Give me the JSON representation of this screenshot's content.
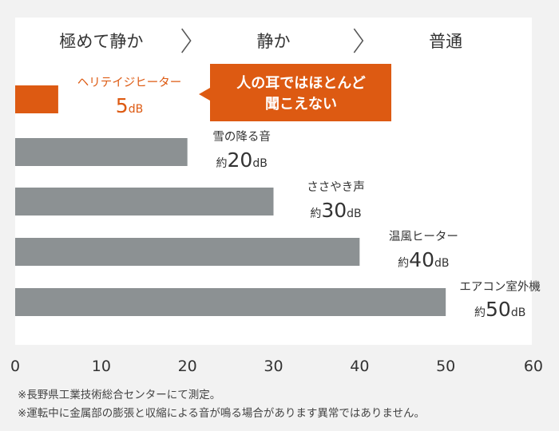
{
  "chart_data": {
    "type": "bar",
    "orientation": "horizontal",
    "xlim": [
      0,
      60
    ],
    "x_ticks": [
      0,
      10,
      20,
      30,
      40,
      50,
      60
    ],
    "grid": false,
    "zones": [
      "極めて静か",
      "静か",
      "普通"
    ],
    "zone_breaks": [
      20,
      40
    ],
    "colors": {
      "highlight": "#dd5a12",
      "bar": "#8c9193",
      "plot_bg": "#ffffff",
      "label_text": "#333333"
    },
    "bars": [
      {
        "name": "ヘリテイジヒーター",
        "prefix": "",
        "value": 5,
        "value_label": "5",
        "unit": "dB",
        "highlight": true
      },
      {
        "name": "雪の降る音",
        "prefix": "約",
        "value": 20,
        "value_label": "20",
        "unit": "dB",
        "highlight": false
      },
      {
        "name": "ささやき声",
        "prefix": "約",
        "value": 30,
        "value_label": "30",
        "unit": "dB",
        "highlight": false
      },
      {
        "name": "温風ヒーター",
        "prefix": "約",
        "value": 40,
        "value_label": "40",
        "unit": "dB",
        "highlight": false
      },
      {
        "name": "エアコン室外機",
        "prefix": "約",
        "value": 50,
        "value_label": "50",
        "unit": "dB",
        "highlight": false
      }
    ],
    "callout": {
      "lines": [
        "人の耳ではほとんど",
        "聞こえない"
      ]
    }
  },
  "notes": [
    "※長野県工業技術総合センターにて測定。",
    "※運転中に金属部の膨張と収縮による音が鳴る場合があります異常ではありません。"
  ]
}
